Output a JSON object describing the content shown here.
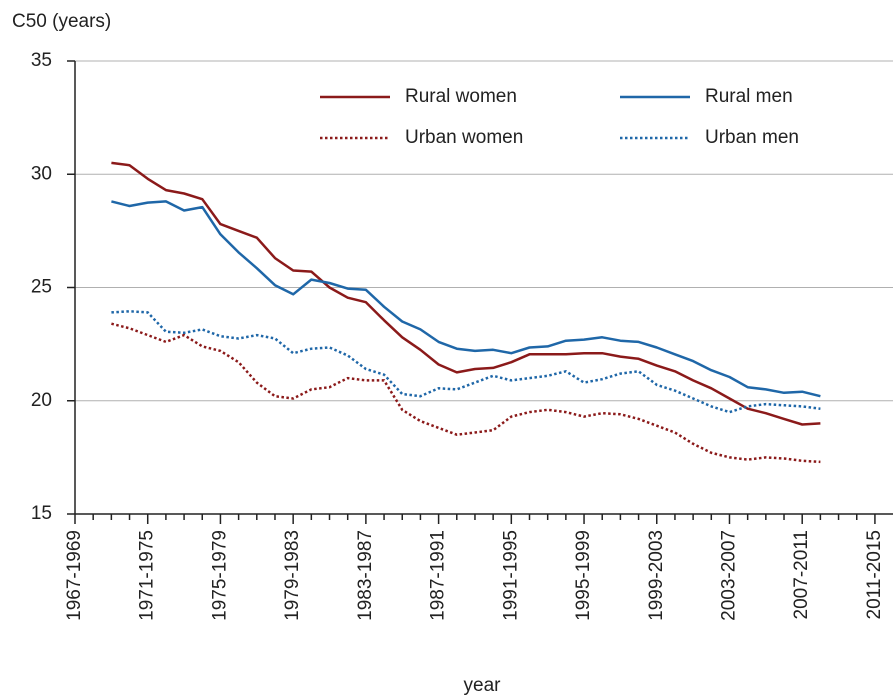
{
  "chart_data": {
    "type": "line",
    "y_label": "C50 (years)",
    "x_label": "year",
    "categories": [
      "1967-1969",
      null,
      null,
      null,
      "1971-1975",
      null,
      null,
      null,
      "1975-1979",
      null,
      null,
      null,
      "1979-1983",
      null,
      null,
      null,
      "1983-1987",
      null,
      null,
      null,
      "1987-1991",
      null,
      null,
      null,
      "1991-1995",
      null,
      null,
      null,
      "1995-1999",
      null,
      null,
      null,
      "1999-2003",
      null,
      null,
      null,
      "2003-2007",
      null,
      null,
      null,
      "2007-2011",
      null,
      null,
      null,
      "2011-2015"
    ],
    "ylim": [
      15,
      35
    ],
    "yticks": [
      15,
      20,
      25,
      30,
      35
    ],
    "grid": true,
    "series": [
      {
        "name": "Rural women",
        "color": "#8b1a1a",
        "dash": "solid",
        "values": [
          null,
          null,
          30.5,
          30.4,
          29.8,
          29.3,
          29.15,
          28.9,
          27.8,
          27.5,
          27.2,
          26.3,
          25.75,
          25.7,
          25.0,
          24.55,
          24.35,
          23.55,
          22.8,
          22.25,
          21.6,
          21.25,
          21.4,
          21.45,
          21.7,
          22.05,
          22.05,
          22.05,
          22.1,
          22.1,
          21.95,
          21.85,
          21.55,
          21.3,
          20.9,
          20.55,
          20.1,
          19.65,
          19.45,
          19.2,
          18.95,
          19.0,
          null,
          null,
          null
        ]
      },
      {
        "name": "Urban women",
        "color": "#8b1a1a",
        "dash": "dotted",
        "values": [
          null,
          null,
          23.4,
          23.2,
          22.9,
          22.6,
          22.9,
          22.4,
          22.2,
          21.7,
          20.8,
          20.2,
          20.1,
          20.5,
          20.6,
          21.0,
          20.9,
          20.9,
          19.6,
          19.1,
          18.8,
          18.5,
          18.6,
          18.7,
          19.3,
          19.5,
          19.6,
          19.5,
          19.3,
          19.45,
          19.4,
          19.2,
          18.9,
          18.6,
          18.1,
          17.7,
          17.5,
          17.4,
          17.5,
          17.45,
          17.35,
          17.3,
          null,
          null,
          null
        ]
      },
      {
        "name": "Rural men",
        "color": "#1f67a8",
        "dash": "solid",
        "values": [
          null,
          null,
          28.8,
          28.6,
          28.75,
          28.8,
          28.4,
          28.55,
          27.35,
          26.55,
          25.85,
          25.1,
          24.7,
          25.35,
          25.2,
          24.95,
          24.9,
          24.15,
          23.5,
          23.15,
          22.6,
          22.3,
          22.2,
          22.25,
          22.1,
          22.35,
          22.4,
          22.65,
          22.7,
          22.8,
          22.65,
          22.6,
          22.35,
          22.05,
          21.75,
          21.35,
          21.05,
          20.6,
          20.5,
          20.35,
          20.4,
          20.2,
          null,
          null,
          null
        ]
      },
      {
        "name": "Urban men",
        "color": "#1f67a8",
        "dash": "dotted",
        "values": [
          null,
          null,
          23.9,
          23.95,
          23.9,
          23.05,
          23.0,
          23.15,
          22.85,
          22.75,
          22.9,
          22.75,
          22.1,
          22.3,
          22.35,
          22.0,
          21.4,
          21.15,
          20.3,
          20.2,
          20.55,
          20.5,
          20.8,
          21.1,
          20.9,
          21.0,
          21.1,
          21.3,
          20.8,
          20.95,
          21.2,
          21.3,
          20.7,
          20.45,
          20.1,
          19.75,
          19.5,
          19.75,
          19.85,
          19.8,
          19.75,
          19.65,
          null,
          null,
          null
        ]
      }
    ]
  }
}
